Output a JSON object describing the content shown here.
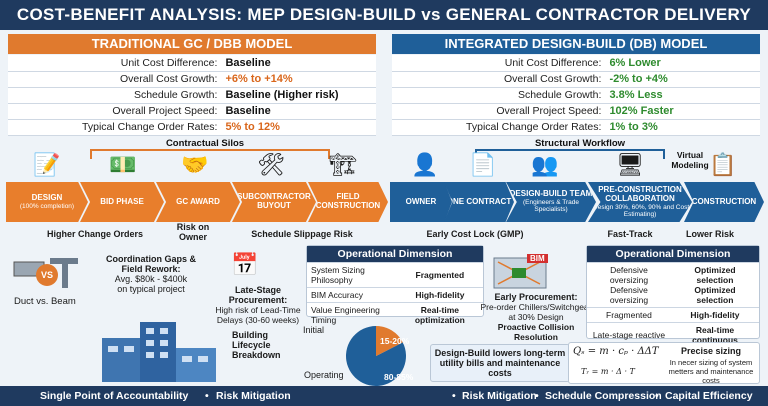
{
  "title": "COST-BENEFIT ANALYSIS: MEP DESIGN-BUILD vs GENERAL CONTRACTOR DELIVERY",
  "left_panel": {
    "header": "TRADITIONAL GC / DBB MODEL",
    "rows": [
      {
        "k": "Unit Cost Difference:",
        "v": "Baseline"
      },
      {
        "k": "Overall Cost Growth:",
        "v": "+6% to +14%"
      },
      {
        "k": "Schedule Growth:",
        "v": "Baseline (Higher risk)"
      },
      {
        "k": "Overall Project Speed:",
        "v": "Baseline"
      },
      {
        "k": "Typical Change Order Rates:",
        "v": "5% to 12%"
      }
    ]
  },
  "right_panel": {
    "header": "INTEGRATED DESIGN-BUILD (DB) MODEL",
    "rows": [
      {
        "k": "Unit Cost Difference:",
        "v": "6% Lower"
      },
      {
        "k": "Overall Cost Growth:",
        "v": "-2% to +4%"
      },
      {
        "k": "Schedule Growth:",
        "v": "3.8% Less"
      },
      {
        "k": "Overall Project Speed:",
        "v": "102% Faster"
      },
      {
        "k": "Typical Change Order Rates:",
        "v": "1% to 3%"
      }
    ]
  },
  "left_flow": {
    "label": "Contractual Silos",
    "steps": [
      {
        "t": "DESIGN",
        "s": "(100% completion)"
      },
      {
        "t": "BID PHASE",
        "s": ""
      },
      {
        "t": "GC AWARD",
        "s": ""
      },
      {
        "t": "SUBCONTRACTOR BUYOUT",
        "s": ""
      },
      {
        "t": "FIELD CONSTRUCTION",
        "s": ""
      }
    ],
    "notes": {
      "a": "Higher Change Orders",
      "b": "Risk on Owner",
      "c": "Schedule Slippage Risk"
    }
  },
  "right_flow": {
    "label": "Structural Workflow",
    "virtual": "Virtual Modeling",
    "steps": [
      {
        "t": "OWNER",
        "s": ""
      },
      {
        "t": "ONE CONTRACT",
        "s": ""
      },
      {
        "t": "DESIGN-BUILD TEAM",
        "s": "(Engineers & Trade Specialists)"
      },
      {
        "t": "PRE-CONSTRUCTION COLLABORATION",
        "s": "(Design 30%, 60%, 90% and Cost Estimating)"
      },
      {
        "t": "CONSTRUCTION",
        "s": ""
      }
    ],
    "notes": {
      "a": "Early Cost Lock (GMP)",
      "b": "Fast-Track",
      "c": "Lower Risk"
    }
  },
  "coordination": {
    "title": "Coordination Gaps & Field Rework:",
    "line1": "Avg. $80k - $400k",
    "line2": "on typical project",
    "duct": "Duct",
    "vs": "vs.",
    "beam": "Beam",
    "badge": "VS"
  },
  "procurement_late": {
    "title": "Late-Stage Procurement:",
    "desc": "High risk of Lead-Time Delays (30-60 weeks)"
  },
  "lifecycle": {
    "label": "Building Lifecycle Breakdown",
    "initial": "Initial",
    "operating": "Operating",
    "pct_initial": "15-20%",
    "pct_operating": "80-85%",
    "initial_share": 0.175
  },
  "od_left": {
    "header": "Operational Dimension",
    "rows": [
      {
        "a": "System Sizing Philosophy",
        "b": "Fragmented"
      },
      {
        "a": "BIM Accuracy",
        "b": "High-fidelity"
      },
      {
        "a": "Value Engineering Timing",
        "b": "Real-time optimization"
      }
    ]
  },
  "early_proc": {
    "bim": "BIM",
    "title": "Early Procurement:",
    "desc": "Pre-order Chillers/Switchgear at 30% Design",
    "sub": "Proactive Collision Resolution"
  },
  "db_note": "Design-Build lowers long-term utility bills and maintenance costs",
  "od_right": {
    "header": "Operational Dimension",
    "rows": [
      {
        "a": "Defensive oversizing Defensive oversizing",
        "b": "Optimized selection Optimized selection"
      },
      {
        "a": "Fragmented",
        "b": "High-fidelity"
      },
      {
        "a": "Late-stage reactive cuts",
        "b": "Real-time continuous optimization"
      }
    ]
  },
  "formula": {
    "main": "Qₛ = m · cₚ · ΔΔT",
    "sub": "Tᵣ = m · Δ · T",
    "title": "Precise sizing",
    "desc": "In necer sizing of system metters and maintenance costs"
  },
  "footer": {
    "left": [
      "Single Point of Accountability",
      "Risk Mitigation"
    ],
    "right": [
      "Risk Mitigation",
      "Schedule Compression",
      "Capital Efficiency"
    ],
    "bullet": "•"
  },
  "colors": {
    "orange": "#e07a2e",
    "blue": "#1f5f99",
    "navy": "#1f3a5f",
    "green": "#2e8b2e"
  }
}
